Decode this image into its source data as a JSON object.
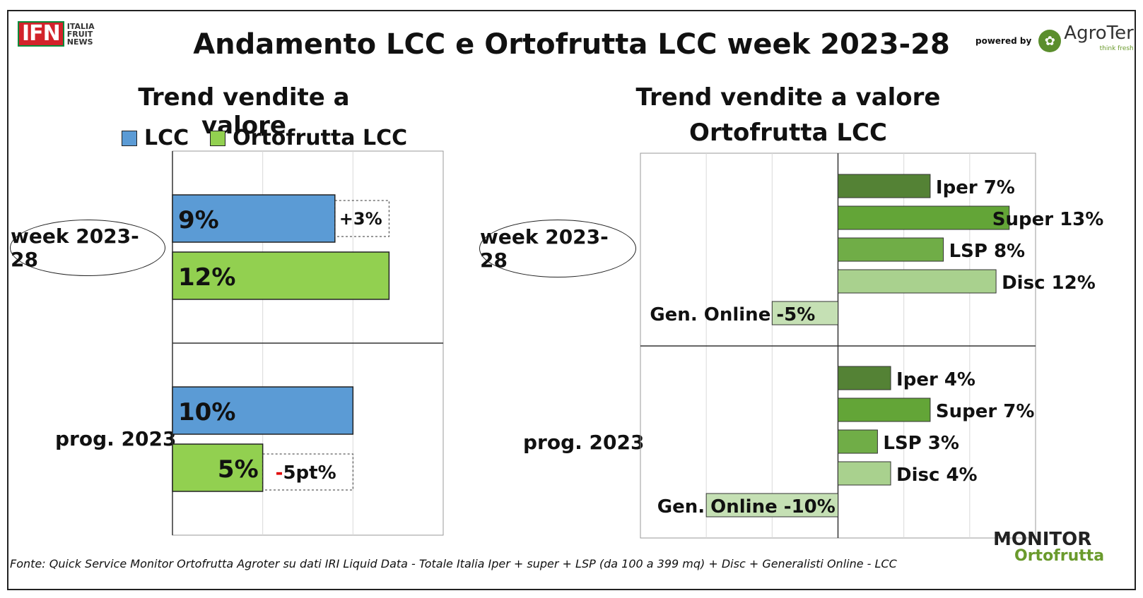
{
  "title": "Andamento LCC e Ortofrutta LCC week 2023-28",
  "logo_left": {
    "mark": "IFN",
    "sub": "ITALIA FRUIT NEWS"
  },
  "logo_right": {
    "powered_by": "powered by",
    "name": "AgroTer",
    "tagline": "think fresh"
  },
  "logo_bottom": {
    "line1": "MONITOR",
    "line2": "Ortofrutta"
  },
  "footer": "Fonte: Quick Service Monitor Ortofrutta Agroter su dati IRI Liquid Data - Totale Italia Iper + super + LSP (da 100 a 399 mq) + Disc + Generalisti Online - LCC",
  "colors": {
    "lcc": "#5b9bd5",
    "ortofrutta": "#92d050",
    "iper": "#548235",
    "super": "#63a537",
    "lsp": "#70ad47",
    "disc": "#a9d18e",
    "online": "#c5e0b4",
    "delta_neg": "#e00000"
  },
  "chart_data": [
    {
      "type": "bar",
      "title": "Trend vendite a valore",
      "categories": [
        "week 2023-28",
        "prog. 2023"
      ],
      "legend": [
        "LCC",
        "Ortofrutta LCC"
      ],
      "series": [
        {
          "name": "LCC",
          "values": [
            9,
            10
          ],
          "labels": [
            "9%",
            "10%"
          ]
        },
        {
          "name": "Ortofrutta LCC",
          "values": [
            12,
            5
          ],
          "labels": [
            "12%",
            "5%"
          ]
        }
      ],
      "annotations": [
        {
          "category": "week 2023-28",
          "text": "+3%"
        },
        {
          "category": "prog. 2023",
          "sign": "-",
          "text": "5pt%"
        }
      ],
      "xlim": [
        0,
        15
      ],
      "grid": true
    },
    {
      "type": "bar",
      "title_line1": "Trend vendite a valore",
      "title_line2": "Ortofrutta LCC",
      "categories": [
        "week 2023-28",
        "prog. 2023"
      ],
      "channels": [
        "Iper",
        "Super",
        "LSP",
        "Disc",
        "Gen. Online"
      ],
      "groups": [
        {
          "category": "week 2023-28",
          "values": [
            7,
            13,
            8,
            12,
            -5
          ],
          "labels": [
            "Iper 7%",
            "Super 13%",
            "LSP 8%",
            "Disc 12%",
            "-5%"
          ]
        },
        {
          "category": "prog. 2023",
          "values": [
            4,
            7,
            3,
            4,
            -10
          ],
          "labels": [
            "Iper 4%",
            "Super 7%",
            "LSP 3%",
            "Disc 4%",
            "Online -10%"
          ]
        }
      ],
      "online_prefix": "Gen. ",
      "online_prefix_2": "Gen. Online",
      "xlim": [
        -15,
        15
      ],
      "grid": true
    }
  ]
}
